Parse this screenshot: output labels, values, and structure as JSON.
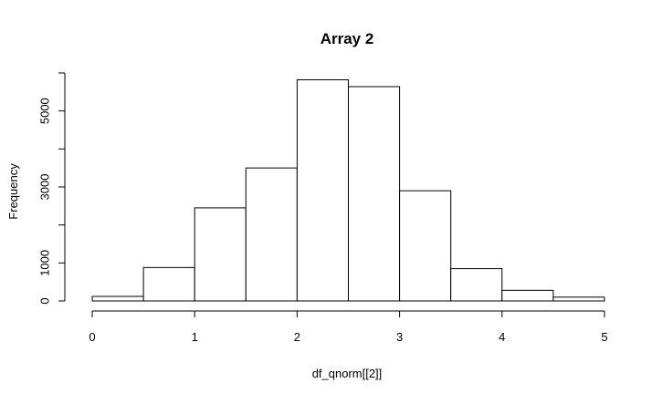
{
  "chart_data": {
    "type": "bar",
    "title": "Array 2",
    "xlabel": "df_qnorm[[2]]",
    "ylabel": "Frequency",
    "bin_edges": [
      0,
      0.5,
      1,
      1.5,
      2,
      2.5,
      3,
      3.5,
      4,
      4.5,
      5
    ],
    "values": [
      120,
      880,
      2450,
      3500,
      5820,
      5640,
      2900,
      850,
      280,
      100
    ],
    "xlim": [
      0,
      5
    ],
    "ylim": [
      0,
      6000
    ],
    "x_ticks": [
      "0",
      "1",
      "2",
      "3",
      "4",
      "5"
    ],
    "y_ticks": [
      "0",
      "1000",
      "3000",
      "5000"
    ],
    "y_tick_marks": [
      0,
      1000,
      2000,
      3000,
      4000,
      5000,
      6000
    ],
    "bar_fill": "#ffffff",
    "bar_stroke": "#000000",
    "grid": false,
    "legend": "none"
  }
}
